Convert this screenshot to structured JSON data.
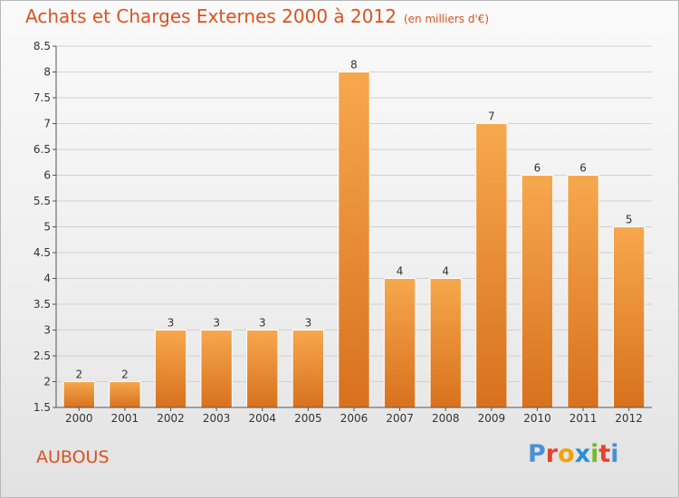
{
  "header": {
    "title": "Achats et Charges Externes 2000 à 2012",
    "unit": "(en milliers d'€)"
  },
  "commune": "AUBOUS",
  "logo": {
    "text": "Proxiti",
    "letter_colors": [
      "#4a90d9",
      "#e8412c",
      "#f2a20c",
      "#2c8fd6",
      "#7ab829",
      "#e8412c",
      "#4a90d9"
    ]
  },
  "chart_data": {
    "type": "bar",
    "categories": [
      "2000",
      "2001",
      "2002",
      "2003",
      "2004",
      "2005",
      "2006",
      "2007",
      "2008",
      "2009",
      "2010",
      "2011",
      "2012"
    ],
    "values": [
      2,
      2,
      3,
      3,
      3,
      3,
      8,
      4,
      4,
      7,
      6,
      6,
      5
    ],
    "data_labels": [
      "2",
      "2",
      "3",
      "3",
      "3",
      "3",
      "8",
      "4",
      "4",
      "7",
      "6",
      "6",
      "5"
    ],
    "title": "Achats et Charges Externes 2000 à 2012",
    "xlabel": "",
    "ylabel": "",
    "ylim": [
      1.5,
      8.5
    ],
    "yticks": [
      1.5,
      2,
      2.5,
      3,
      3.5,
      4,
      4.5,
      5,
      5.5,
      6,
      6.5,
      7,
      7.5,
      8,
      8.5
    ],
    "ytick_labels": [
      "1.5",
      "2",
      "2.5",
      "3",
      "3.5",
      "4",
      "4.5",
      "5",
      "5.5",
      "6",
      "6.5",
      "7",
      "7.5",
      "8",
      "8.5"
    ],
    "grid": true,
    "legend": "none",
    "colors": {
      "bar_top": "#f7a84e",
      "bar_bottom": "#d8711e",
      "grid": "#d0d0d0",
      "axis": "#555555"
    }
  }
}
